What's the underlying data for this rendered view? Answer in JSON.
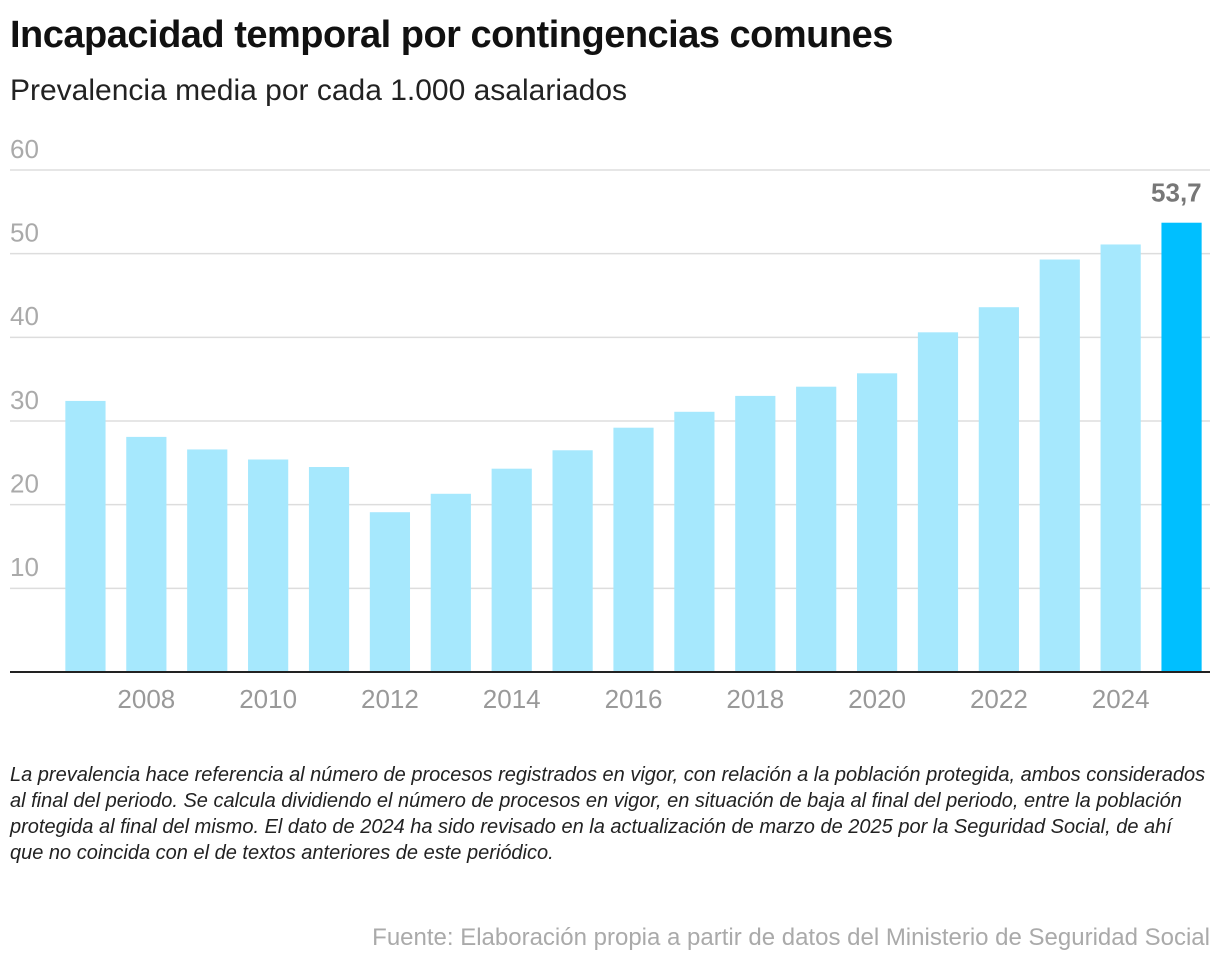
{
  "title": "Incapacidad temporal por contingencias comunes",
  "subtitle": "Prevalencia media por cada 1.000 asalariados",
  "chart_data": {
    "type": "bar",
    "categories": [
      null,
      "2008",
      null,
      "2010",
      null,
      "2012",
      null,
      "2014",
      null,
      "2016",
      null,
      "2018",
      null,
      "2020",
      null,
      "2022",
      null,
      "2024",
      null
    ],
    "values": [
      32.4,
      28.1,
      26.6,
      25.4,
      24.5,
      19.1,
      21.3,
      24.3,
      26.5,
      29.2,
      31.1,
      33.0,
      34.1,
      35.7,
      40.6,
      43.6,
      49.3,
      51.1,
      53.7
    ],
    "value_labels": [
      null,
      null,
      null,
      null,
      null,
      null,
      null,
      null,
      null,
      null,
      null,
      null,
      null,
      null,
      null,
      null,
      null,
      null,
      "53,7"
    ],
    "colors": [
      "#a6e8fd",
      "#a6e8fd",
      "#a6e8fd",
      "#a6e8fd",
      "#a6e8fd",
      "#a6e8fd",
      "#a6e8fd",
      "#a6e8fd",
      "#a6e8fd",
      "#a6e8fd",
      "#a6e8fd",
      "#a6e8fd",
      "#a6e8fd",
      "#a6e8fd",
      "#a6e8fd",
      "#a6e8fd",
      "#a6e8fd",
      "#a6e8fd",
      "#00bfff"
    ],
    "ylim": [
      0,
      60
    ],
    "yticks": [
      10,
      20,
      30,
      40,
      50,
      60
    ],
    "grid": true
  },
  "note": "La prevalencia hace referencia al número de procesos registrados en vigor, con relación a la población protegida, ambos considerados al final del periodo. Se calcula dividiendo el número de procesos en vigor, en situación de baja al final del periodo, entre la población protegida al final del mismo. El dato de 2024 ha sido revisado en la actualización de marzo de 2025 por la Seguridad Social, de ahí que no coincida con el de textos anteriores de este periódico.",
  "source": "Fuente: Elaboración propia a partir de datos del Ministerio de Seguridad Social"
}
